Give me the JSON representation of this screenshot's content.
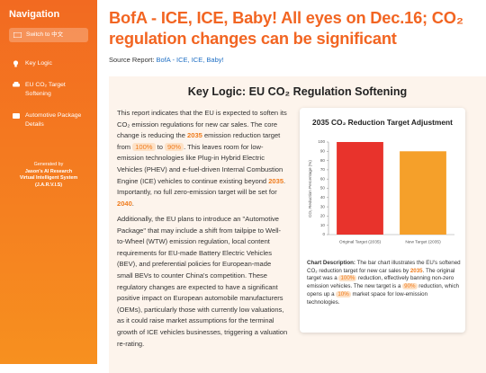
{
  "sidebar": {
    "title": "Navigation",
    "switch_button": "Switch to 中文",
    "nav": [
      "Key Logic",
      "EU CO₂ Target Softening",
      "Automotive Package Details"
    ],
    "footer": [
      "Generated by",
      "Jason's AI Research",
      "Virtual Intelligent System",
      "(J.A.R.V.I.S)"
    ]
  },
  "header": {
    "title": "BofA - ICE, ICE, Baby! All eyes on Dec.16; CO₂ regulation changes can be significant",
    "source_label": "Source Report:",
    "source_link": "BofA - ICE, ICE, Baby!"
  },
  "section": {
    "title": "Key Logic: EU CO₂ Regulation Softening",
    "paragraphs": [
      [
        "This report indicates that the EU is expected to soften its CO₂ emission regulations for new car sales. The core change is reducing the ",
        "2035",
        " emission reduction target from ",
        "100%",
        " to ",
        "90%",
        ". This leaves room for low-emission technologies like Plug-in Hybrid Electric Vehicles (PHEV) and e-fuel-driven Internal Combustion Engine (ICE) vehicles to continue existing beyond ",
        "2035",
        ". Importantly, no full zero-emission target will be set for ",
        "2040",
        "."
      ],
      [
        "Additionally, the EU plans to introduce an \"Automotive Package\" that may include a shift from tailpipe to Well-to-Wheel (WTW) emission regulation, local content requirements for EU-made Battery Electric Vehicles (BEV), and preferential policies for European-made small BEVs to counter China's competition. These regulatory changes are expected to have a significant positive impact on European automobile manufacturers (OEMs), particularly those with currently low valuations, as it could raise market assumptions for the terminal growth of ICE vehicles businesses, triggering a valuation re-rating."
      ]
    ]
  },
  "chart_data": {
    "type": "bar",
    "title": "2035 CO₂ Reduction Target Adjustment",
    "y_label": "CO₂ Reduction Percentage (%)",
    "categories": [
      "Original Target (2035)",
      "New Target (2035)"
    ],
    "values": [
      100,
      90
    ],
    "colors": [
      "#e8332c",
      "#f5a02a"
    ],
    "ylim": [
      0,
      100
    ],
    "yticks": [
      0,
      10,
      20,
      30,
      40,
      50,
      60,
      70,
      80,
      90,
      100
    ],
    "grid": false
  },
  "caption": [
    "Chart Description:",
    " The bar chart illustrates the EU's softened CO₂ reduction target for new car sales by ",
    "2035",
    ". The original target was a ",
    "100%",
    " reduction, effectively banning non-zero emission vehicles. The new target is a ",
    "90%",
    " reduction, which opens up a ",
    "10%",
    " market space for low-emission technologies."
  ]
}
